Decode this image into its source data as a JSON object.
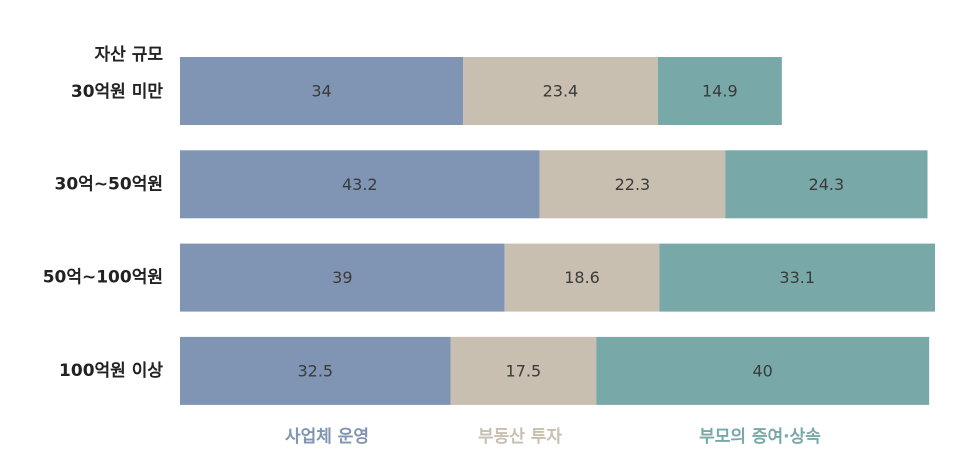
{
  "chart_data": {
    "type": "stacked-bar-horizontal",
    "y_label": "자산 규모",
    "categories": [
      "30억원 미만",
      "30억~50억원",
      "50억~100억원",
      "100억원 이상"
    ],
    "series": [
      {
        "name": "사업체 운영",
        "color": "#8095b3",
        "values": [
          34,
          43.2,
          39,
          32.5
        ]
      },
      {
        "name": "부동산 투자",
        "color": "#c9bfb1",
        "values": [
          23.4,
          22.3,
          18.6,
          17.5
        ]
      },
      {
        "name": "부모의 증여·상속",
        "color": "#79a8a8",
        "values": [
          14.9,
          24.3,
          33.1,
          40
        ]
      }
    ]
  }
}
